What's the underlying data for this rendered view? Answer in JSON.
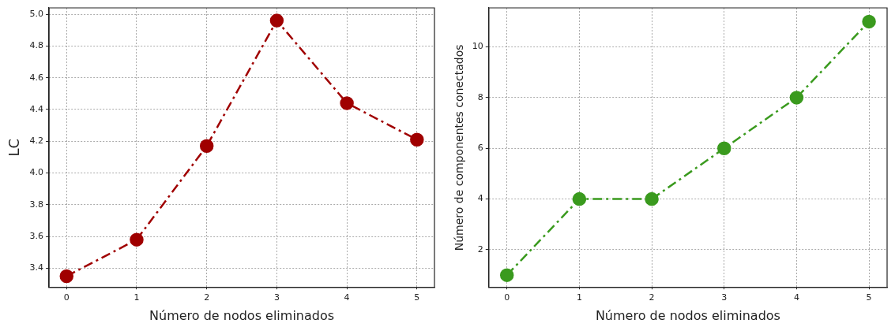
{
  "chart_data": [
    {
      "type": "line",
      "xlabel": "Número de nodos eliminados",
      "ylabel": "LC",
      "x": [
        0,
        1,
        2,
        3,
        4,
        5
      ],
      "series": [
        {
          "color": "#a00000",
          "values": [
            3.35,
            3.58,
            4.17,
            4.96,
            4.44,
            4.21
          ]
        }
      ],
      "xlim": [
        -0.25,
        5.25
      ],
      "xticks": [
        0,
        1,
        2,
        3,
        4,
        5
      ],
      "ylim": [
        3.28,
        5.04
      ],
      "yticks": [
        3.4,
        3.6,
        3.8,
        {
          "value": 4,
          "label": "4.0"
        },
        4.2,
        4.4,
        4.6,
        4.8,
        {
          "value": 5,
          "label": "5.0"
        }
      ],
      "grid": true,
      "legend": false,
      "marker": "circle",
      "line_style": "dashed"
    },
    {
      "type": "line",
      "xlabel": "Número de nodos eliminados",
      "ylabel": "Número de componentes conectados",
      "x": [
        0,
        1,
        2,
        3,
        4,
        5
      ],
      "series": [
        {
          "color": "#3a9a1e",
          "values": [
            1,
            4,
            4,
            6,
            8,
            11
          ]
        }
      ],
      "xlim": [
        -0.25,
        5.25
      ],
      "xticks": [
        0,
        1,
        2,
        3,
        4,
        5
      ],
      "ylim": [
        0.52,
        11.54
      ],
      "yticks": [
        2,
        4,
        6,
        8,
        10
      ],
      "grid": true,
      "legend": false,
      "marker": "circle",
      "line_style": "dashed"
    }
  ]
}
